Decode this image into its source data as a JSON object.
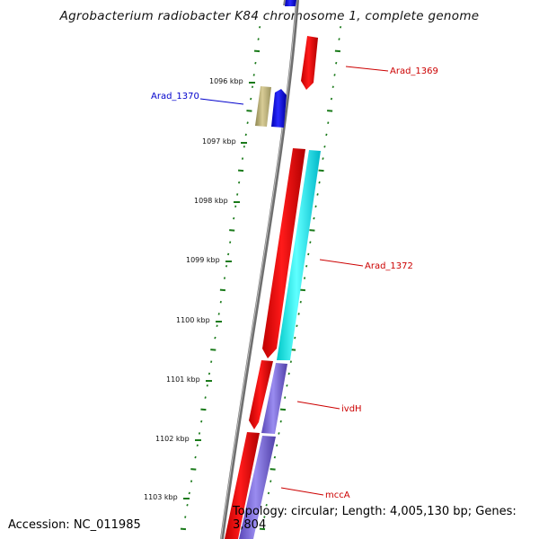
{
  "title": "Agrobacterium radiobacter K84 chromosome 1, complete genome",
  "ticks": [
    "1096 kbp",
    "1097 kbp",
    "1098 kbp",
    "1099 kbp",
    "1100 kbp",
    "1101 kbp",
    "1102 kbp",
    "1103 kbp"
  ],
  "labels": {
    "arad_1369": "Arad_1369",
    "arad_1370": "Arad_1370",
    "arad_1372": "Arad_1372",
    "ivdh": "ivdH",
    "mcca": "mccA"
  },
  "footer": {
    "accession": "Accession: NC_011985",
    "topology": "Topology: circular; Length: 4,005,130 bp; Genes: 3,804"
  },
  "colors": {
    "backbone": "#777777",
    "forward_gene": "#ff0000",
    "reverse_gene": "#0000ff",
    "cyan_gene": "#00ffff",
    "purple_gene": "#7b68d6",
    "khaki_gene": "#bdb27a",
    "tick": "#1a7a1a",
    "red_label": "#cc0000",
    "blue_label": "#0000cc"
  }
}
